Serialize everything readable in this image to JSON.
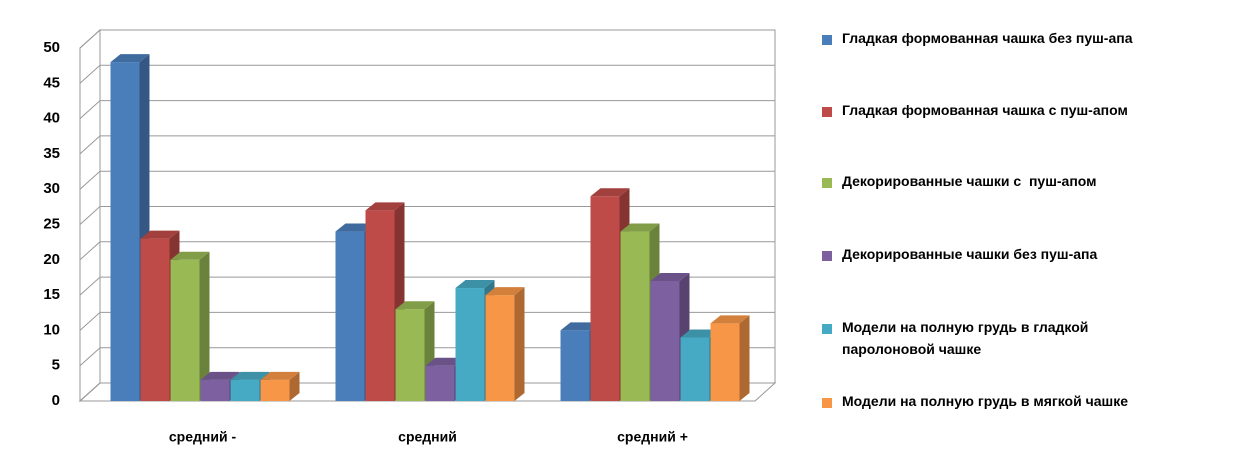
{
  "chart_data": {
    "type": "bar3d",
    "categories": [
      "средний -",
      "средний",
      "средний +"
    ],
    "series": [
      {
        "name": "Гладкая формованная чашка без пуш-апа",
        "color": "#4a7ebb",
        "values": [
          48,
          24,
          10
        ]
      },
      {
        "name": "Гладкая формованная чашка с пуш-апом",
        "color": "#be4b48",
        "values": [
          23,
          27,
          29
        ]
      },
      {
        "name": "Декорированные чашки с  пуш-апом",
        "color": "#98b954",
        "values": [
          20,
          13,
          24
        ]
      },
      {
        "name": "Декорированные чашки без пуш-апа",
        "color": "#7d60a0",
        "values": [
          3,
          5,
          17
        ]
      },
      {
        "name": "Модели на полную грудь в гладкой паролоновой чашке",
        "color": "#46aac5",
        "values": [
          3,
          16,
          9
        ]
      },
      {
        "name": "Модели на полную грудь в мягкой чашке",
        "color": "#f79646",
        "values": [
          3,
          15,
          11
        ]
      }
    ],
    "ylim": [
      0,
      50
    ],
    "yticks": [
      0,
      5,
      10,
      15,
      20,
      25,
      30,
      35,
      40,
      45,
      50
    ],
    "grid": true,
    "legend": "right"
  }
}
